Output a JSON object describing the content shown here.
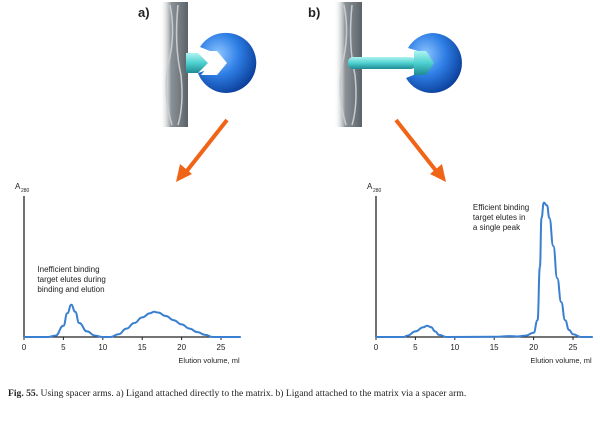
{
  "panels": [
    {
      "label": "a)",
      "description_label": "Ligand attached directly"
    },
    {
      "label": "b)",
      "description_label": "Ligand attached via spacer arm"
    }
  ],
  "colors": {
    "curve": "#3a7fd0",
    "arrow": "#f06418",
    "bead": "#2f7fe6",
    "ligand": "#5fd8d8",
    "matrix": "#8a9298",
    "axis": "#222222"
  },
  "chart_data": [
    {
      "type": "line",
      "ylabel": "A",
      "ylabel_sub": "280",
      "xlabel": "Elution volume, ml",
      "xlim": [
        0,
        27.5
      ],
      "ylim": [
        0,
        1
      ],
      "xticks": [
        0,
        5,
        10,
        15,
        20,
        25
      ],
      "grid": false,
      "annotation": [
        "Inefficient binding",
        "target elutes during",
        "binding and elution"
      ],
      "x": [
        0,
        3,
        4,
        5,
        5.5,
        6,
        6.5,
        7,
        8,
        9,
        10,
        11,
        12,
        13,
        14,
        15,
        16,
        16.5,
        17,
        18,
        19,
        20,
        21,
        22,
        23,
        24,
        27.5
      ],
      "y": [
        0,
        0,
        0.01,
        0.08,
        0.17,
        0.23,
        0.18,
        0.1,
        0.04,
        0.01,
        0,
        0,
        0.02,
        0.06,
        0.1,
        0.14,
        0.17,
        0.18,
        0.175,
        0.15,
        0.12,
        0.09,
        0.06,
        0.035,
        0.015,
        0,
        0
      ]
    },
    {
      "type": "line",
      "ylabel": "A",
      "ylabel_sub": "280",
      "xlabel": "Elution volume, ml",
      "xlim": [
        0,
        27.5
      ],
      "ylim": [
        0,
        1
      ],
      "xticks": [
        0,
        5,
        10,
        15,
        20,
        25
      ],
      "grid": false,
      "annotation": [
        "Efficient binding",
        "target elutes in",
        "a single peak"
      ],
      "x": [
        0,
        3.5,
        4,
        5,
        6,
        6.5,
        7,
        7.5,
        8,
        9,
        15,
        17,
        18,
        19,
        20,
        20.5,
        20.8,
        21,
        21.3,
        21.7,
        22,
        22.5,
        23,
        23.5,
        24,
        24.5,
        25,
        26,
        27.5
      ],
      "y": [
        0,
        0,
        0.01,
        0.04,
        0.07,
        0.08,
        0.07,
        0.04,
        0.015,
        0,
        0.002,
        0.006,
        0.004,
        0.01,
        0.03,
        0.12,
        0.5,
        0.85,
        0.96,
        0.94,
        0.85,
        0.65,
        0.42,
        0.25,
        0.12,
        0.05,
        0.02,
        0,
        0
      ]
    }
  ],
  "caption": {
    "fig": "Fig. 55.",
    "text": " Using spacer arms. a) Ligand attached directly to the matrix. b) Ligand attached to the matrix via a spacer arm."
  }
}
